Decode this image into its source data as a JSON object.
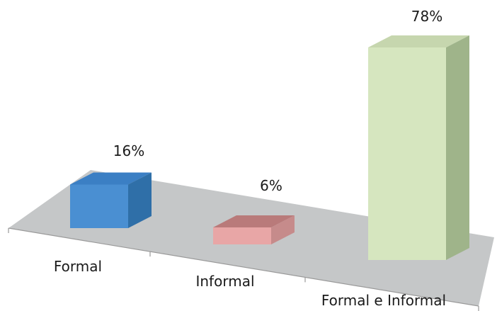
{
  "chart_data": {
    "type": "bar",
    "categories": [
      "Formal",
      "Informal",
      "Formal e Informal"
    ],
    "values": [
      16,
      6,
      78
    ],
    "value_labels": [
      "16%",
      "6%",
      "78%"
    ],
    "unit": "%",
    "ylim": [
      0,
      78
    ],
    "grid": false,
    "legend": "none",
    "colors": {
      "Formal": {
        "front": "#4a8fd2",
        "top": "#3b7fc4",
        "side": "#2f6fa8"
      },
      "Informal": {
        "front": "#e8a6a6",
        "top": "#b97a7a",
        "side": "#c68b8b"
      },
      "Formal e Informal": {
        "front": "#d6e6bf",
        "top": "#c6d6ae",
        "side": "#9fb48a"
      },
      "floor": "#c5c7c8",
      "axis": "#9a9a9a"
    }
  }
}
